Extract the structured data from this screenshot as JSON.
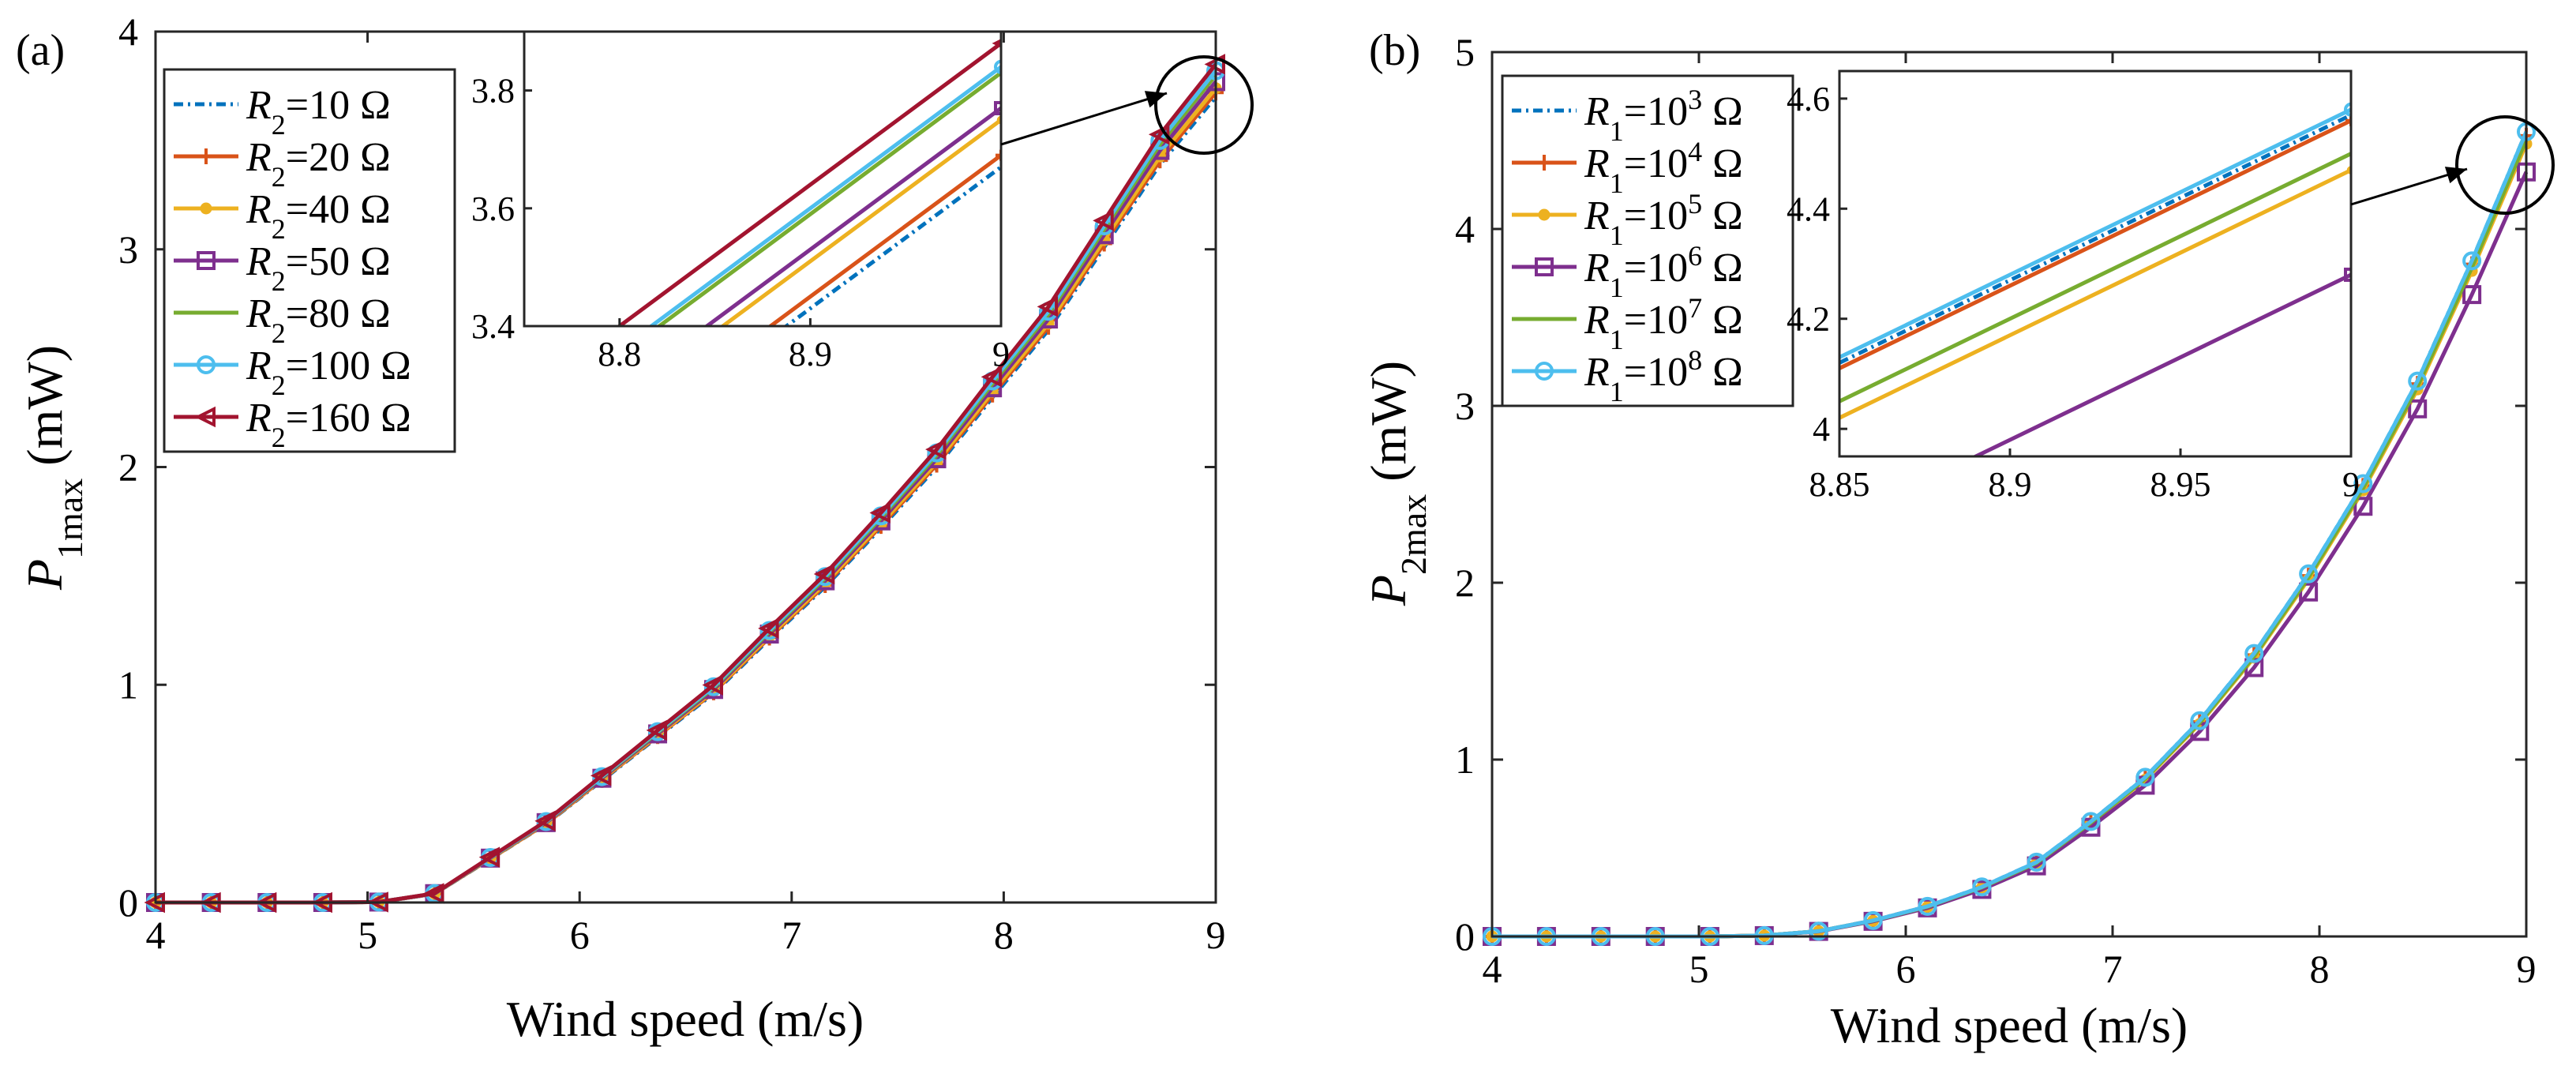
{
  "chart_data": [
    {
      "panel_label": "(a)",
      "type": "line",
      "xlabel": "Wind speed (m/s)",
      "ylabel": {
        "main": "P",
        "sub": "1max",
        "unit": " (mW)"
      },
      "xlim": [
        4,
        9
      ],
      "ylim": [
        0,
        4
      ],
      "xticks": [
        4,
        5,
        6,
        7,
        8,
        9
      ],
      "yticks": [
        0,
        1,
        2,
        3,
        4
      ],
      "x": [
        4.0,
        4.263,
        4.526,
        4.789,
        5.053,
        5.316,
        5.579,
        5.842,
        6.105,
        6.368,
        6.632,
        6.895,
        7.158,
        7.421,
        7.684,
        7.947,
        8.211,
        8.474,
        8.737,
        9.0
      ],
      "base": [
        0,
        0,
        0,
        0,
        0.002,
        0.04,
        0.2,
        0.36,
        0.56,
        0.76,
        0.96,
        1.21,
        1.45,
        1.72,
        2.0,
        2.32,
        2.63,
        3.01,
        3.39,
        3.7
      ],
      "series": [
        {
          "name_main": "R",
          "name_sub": "2",
          "name_rest": "=10 Ω",
          "color": "#0072BD",
          "dash": "12,6,3,6",
          "marker": "none",
          "offset": 0.0,
          "inset_end": 3.67
        },
        {
          "name_main": "R",
          "name_sub": "2",
          "name_rest": "=20 Ω",
          "color": "#D95319",
          "dash": "",
          "marker": "plus",
          "offset": 0.02,
          "inset_end": 3.69
        },
        {
          "name_main": "R",
          "name_sub": "2",
          "name_rest": "=40 Ω",
          "color": "#EDB120",
          "dash": "",
          "marker": "dot",
          "offset": 0.04,
          "inset_end": 3.75
        },
        {
          "name_main": "R",
          "name_sub": "2",
          "name_rest": "=50 Ω",
          "color": "#7E2F8E",
          "dash": "",
          "marker": "square",
          "offset": 0.07,
          "inset_end": 3.77
        },
        {
          "name_main": "R",
          "name_sub": "2",
          "name_rest": "=80 Ω",
          "color": "#77AC30",
          "dash": "",
          "marker": "none",
          "offset": 0.1,
          "inset_end": 3.83
        },
        {
          "name_main": "R",
          "name_sub": "2",
          "name_rest": "=100 Ω",
          "color": "#4DBEEE",
          "dash": "",
          "marker": "circle",
          "offset": 0.12,
          "inset_end": 3.84
        },
        {
          "name_main": "R",
          "name_sub": "2",
          "name_rest": "=160 Ω",
          "color": "#A2142F",
          "dash": "",
          "marker": "triangle-left",
          "offset": 0.15,
          "inset_end": 3.88
        }
      ],
      "inset": {
        "xlim": [
          8.75,
          9.0
        ],
        "ylim": [
          3.4,
          3.9
        ],
        "xticks": [
          8.8,
          8.9,
          9
        ],
        "yticks": [
          3.4,
          3.6,
          3.8
        ],
        "slope": 2.4
      }
    },
    {
      "panel_label": "(b)",
      "type": "line",
      "xlabel": "Wind speed (m/s)",
      "ylabel": {
        "main": "P",
        "sub": "2max",
        "unit": " (mW)"
      },
      "xlim": [
        4,
        9
      ],
      "ylim": [
        0,
        5
      ],
      "xticks": [
        4,
        5,
        6,
        7,
        8,
        9
      ],
      "yticks": [
        0,
        1,
        2,
        3,
        4,
        5
      ],
      "x": [
        4.0,
        4.263,
        4.526,
        4.789,
        5.053,
        5.316,
        5.579,
        5.842,
        6.105,
        6.368,
        6.632,
        6.895,
        7.158,
        7.421,
        7.684,
        7.947,
        8.211,
        8.474,
        8.737,
        9.0
      ],
      "base": [
        0,
        0,
        0,
        0,
        0,
        0.005,
        0.03,
        0.09,
        0.17,
        0.28,
        0.42,
        0.65,
        0.9,
        1.22,
        1.6,
        2.05,
        2.56,
        3.14,
        3.82,
        4.55
      ],
      "series": [
        {
          "name_main": "R",
          "name_sub": "1",
          "name_pow": "3",
          "name_rest": " Ω",
          "color": "#0072BD",
          "dash": "12,6,3,6",
          "marker": "none",
          "scale": 1.0,
          "inset_end": 4.57
        },
        {
          "name_main": "R",
          "name_sub": "1",
          "name_pow": "4",
          "name_rest": " Ω",
          "color": "#D95319",
          "dash": "",
          "marker": "plus",
          "scale": 0.995,
          "inset_end": 4.56
        },
        {
          "name_main": "R",
          "name_sub": "1",
          "name_pow": "5",
          "name_rest": " Ω",
          "color": "#EDB120",
          "dash": "",
          "marker": "dot",
          "scale": 0.985,
          "inset_end": 4.47
        },
        {
          "name_main": "R",
          "name_sub": "1",
          "name_pow": "6",
          "name_rest": " Ω",
          "color": "#7E2F8E",
          "dash": "",
          "marker": "square",
          "scale": 0.95,
          "inset_end": 4.28
        },
        {
          "name_main": "R",
          "name_sub": "1",
          "name_pow": "7",
          "name_rest": " Ω",
          "color": "#77AC30",
          "dash": "",
          "marker": "none",
          "scale": 0.99,
          "inset_end": 4.5
        },
        {
          "name_main": "R",
          "name_sub": "1",
          "name_pow": "8",
          "name_rest": " Ω",
          "color": "#4DBEEE",
          "dash": "",
          "marker": "circle",
          "scale": 1.0,
          "inset_end": 4.58
        }
      ],
      "legend_prefix": "=10",
      "inset": {
        "xlim": [
          8.85,
          9.0
        ],
        "ylim": [
          3.95,
          4.65
        ],
        "xticks": [
          8.85,
          8.9,
          8.95,
          9
        ],
        "yticks": [
          4,
          4.2,
          4.4,
          4.6
        ],
        "slope": 3.0
      }
    }
  ]
}
